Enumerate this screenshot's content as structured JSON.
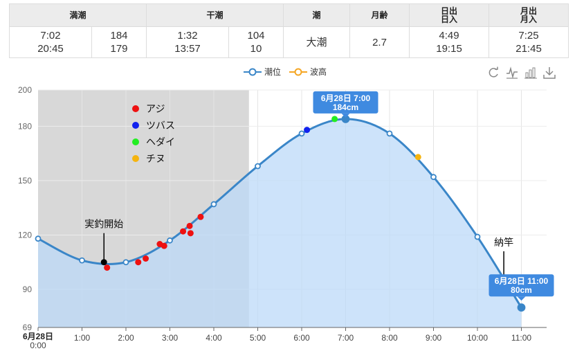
{
  "table": {
    "headers": [
      "満潮",
      "干潮",
      "潮",
      "月齢",
      "日出\n日入",
      "月出\n月入"
    ],
    "high_times": "7:02\n20:45",
    "high_levels": "184\n179",
    "low_times": "1:32\n13:57",
    "low_levels": "104\n10",
    "tide_name": "大潮",
    "moon_age": "2.7",
    "sun": "4:49\n19:15",
    "moon": "7:25\n21:45"
  },
  "legend": {
    "tide_level": "潮位",
    "wave_height": "波高"
  },
  "toolbar": [
    "refresh-icon",
    "line-chart-icon",
    "bar-chart-icon",
    "download-icon"
  ],
  "chart_data": {
    "type": "line",
    "x_unit": "hour",
    "ylim": [
      69,
      200
    ],
    "xlim": [
      0,
      11.5
    ],
    "yticks": [
      69,
      90,
      120,
      150,
      180,
      200
    ],
    "xtick_labels": [
      {
        "x": 0,
        "label": "6月28日\n0:00"
      },
      {
        "x": 1,
        "label": "1:00"
      },
      {
        "x": 2,
        "label": "2:00"
      },
      {
        "x": 3,
        "label": "3:00"
      },
      {
        "x": 4,
        "label": "4:00"
      },
      {
        "x": 5,
        "label": "5:00"
      },
      {
        "x": 6,
        "label": "6:00"
      },
      {
        "x": 7,
        "label": "7:00"
      },
      {
        "x": 8,
        "label": "8:00"
      },
      {
        "x": 9,
        "label": "9:00"
      },
      {
        "x": 10,
        "label": "10:00"
      },
      {
        "x": 11,
        "label": "11:00"
      }
    ],
    "tide_series": {
      "name": "潮位",
      "points": [
        {
          "x": 0.0,
          "y": 118
        },
        {
          "x": 1.0,
          "y": 106
        },
        {
          "x": 2.0,
          "y": 105
        },
        {
          "x": 3.0,
          "y": 117
        },
        {
          "x": 4.0,
          "y": 137
        },
        {
          "x": 5.0,
          "y": 158
        },
        {
          "x": 6.0,
          "y": 176
        },
        {
          "x": 7.0,
          "y": 184
        },
        {
          "x": 8.0,
          "y": 176
        },
        {
          "x": 9.0,
          "y": 152
        },
        {
          "x": 10.0,
          "y": 119
        },
        {
          "x": 11.0,
          "y": 80
        }
      ],
      "color": "#3a86c8",
      "fill": "#bcdaf8"
    },
    "shaded_region": {
      "x_from": 0,
      "x_to": 4.8,
      "color": "#d8d8d8"
    },
    "catch_legend": [
      {
        "name": "アジ",
        "color": "#ee1111"
      },
      {
        "name": "ツバス",
        "color": "#1122ee"
      },
      {
        "name": "ヘダイ",
        "color": "#22ee22"
      },
      {
        "name": "チヌ",
        "color": "#f5b40f"
      }
    ],
    "catches": [
      {
        "species": "アジ",
        "x": 1.57,
        "y": 102
      },
      {
        "species": "アジ",
        "x": 2.28,
        "y": 105
      },
      {
        "species": "アジ",
        "x": 2.45,
        "y": 107
      },
      {
        "species": "アジ",
        "x": 2.77,
        "y": 115
      },
      {
        "species": "アジ",
        "x": 2.87,
        "y": 114
      },
      {
        "species": "アジ",
        "x": 3.3,
        "y": 122
      },
      {
        "species": "アジ",
        "x": 3.45,
        "y": 125
      },
      {
        "species": "アジ",
        "x": 3.47,
        "y": 121
      },
      {
        "species": "アジ",
        "x": 3.7,
        "y": 130
      },
      {
        "species": "ツバス",
        "x": 6.12,
        "y": 178
      },
      {
        "species": "ヘダイ",
        "x": 6.75,
        "y": 184
      },
      {
        "species": "チヌ",
        "x": 8.65,
        "y": 163
      }
    ],
    "annotations": [
      {
        "label": "実釣開始",
        "x": 1.5,
        "y": 105
      },
      {
        "label": "納竿",
        "x": 10.6,
        "y": 95
      }
    ],
    "tooltips": [
      {
        "label": "6月28日 7:00\n184cm",
        "x": 7.0,
        "y": 184
      },
      {
        "label": "6月28日 11:00\n80cm",
        "x": 11.0,
        "y": 80
      }
    ]
  }
}
